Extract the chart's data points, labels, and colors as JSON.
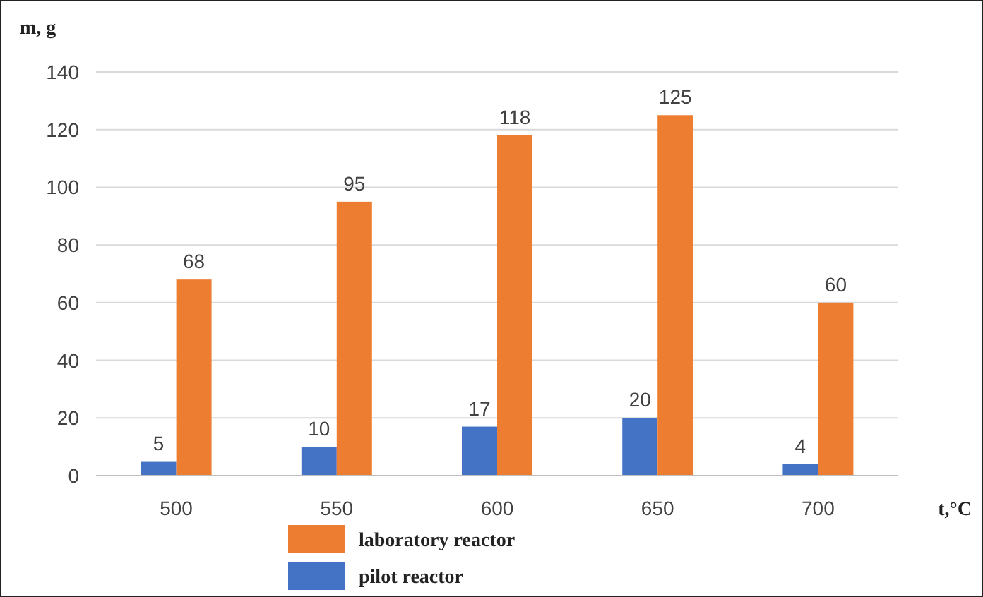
{
  "chart_data": {
    "type": "bar",
    "ylabel": "m, g",
    "xlabel": "t,°C",
    "categories": [
      "500",
      "550",
      "600",
      "650",
      "700"
    ],
    "series": [
      {
        "name": "pilot reactor",
        "color": "#4472c4",
        "values": [
          5,
          10,
          17,
          20,
          4
        ]
      },
      {
        "name": "laboratory reactor",
        "color": "#ed7d31",
        "values": [
          68,
          95,
          118,
          125,
          60
        ]
      }
    ],
    "ylim": [
      0,
      140
    ],
    "yticks": [
      0,
      20,
      40,
      60,
      80,
      100,
      120,
      140
    ],
    "grid": "y",
    "data_labels": true,
    "legend": "bottom"
  }
}
